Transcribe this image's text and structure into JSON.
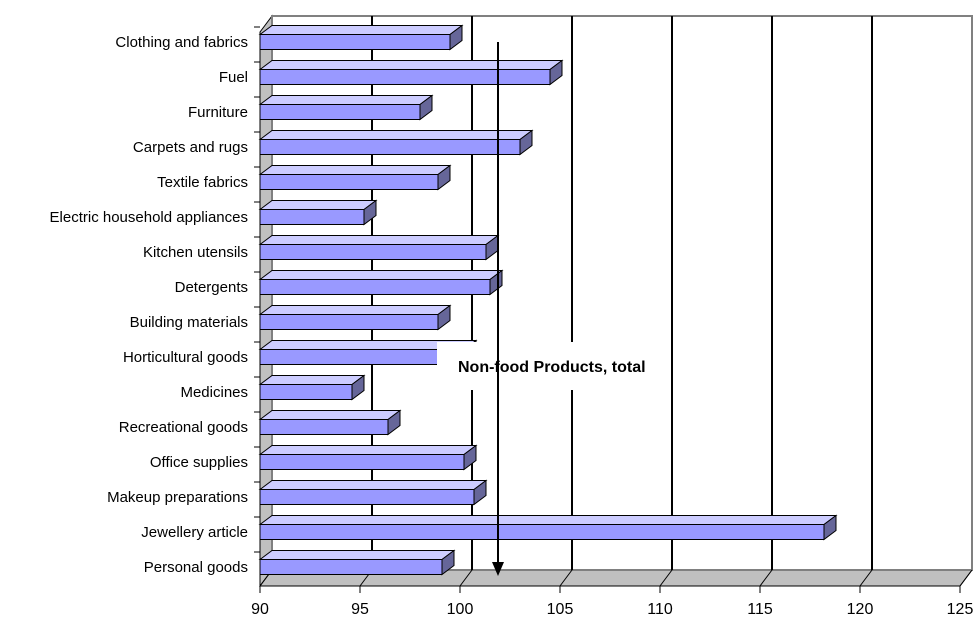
{
  "chart_data": {
    "type": "bar",
    "orientation": "horizontal",
    "three_d": true,
    "title": "",
    "xlabel": "",
    "ylabel": "",
    "categories": [
      "Clothing and fabrics",
      "Fuel",
      "Furniture",
      "Carpets and rugs",
      "Textile fabrics",
      "Electric household appliances",
      "Kitchen utensils",
      "Detergents",
      "Building materials",
      "Horticultural goods",
      "Medicines",
      "Recreational goods",
      "Office supplies",
      "Makeup preparations",
      "Jewellery article",
      "Personal goods"
    ],
    "values": [
      99.5,
      104.5,
      98.0,
      103.0,
      98.9,
      95.2,
      101.3,
      101.5,
      98.9,
      100.2,
      94.6,
      96.4,
      100.2,
      100.7,
      118.2,
      99.1
    ],
    "xlim": [
      90,
      125
    ],
    "xticks": [
      "90",
      "95",
      "100",
      "105",
      "110",
      "115",
      "120",
      "125"
    ],
    "grid": "vertical",
    "bar_color": "#9999ff",
    "annotation": {
      "text": "Non-food Products, total",
      "value": 101.9,
      "marker": "downward arrow"
    }
  }
}
